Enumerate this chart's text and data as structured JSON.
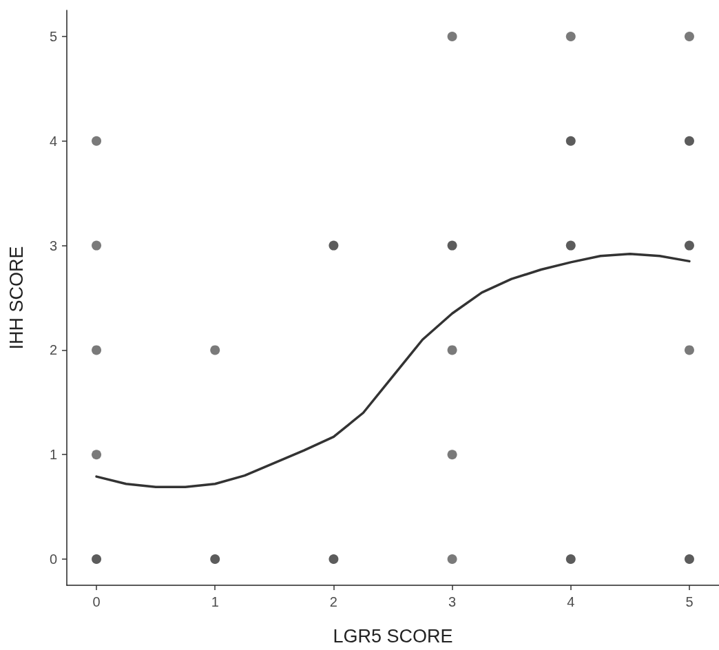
{
  "chart_data": {
    "type": "scatter",
    "xlabel": "LGR5 SCORE",
    "ylabel": "IHH SCORE",
    "xlim": [
      -0.25,
      5.25
    ],
    "xticks": [
      0,
      1,
      2,
      3,
      4,
      5
    ],
    "ylim": [
      -0.25,
      5.25
    ],
    "yticks": [
      0,
      1,
      2,
      3,
      4,
      5
    ],
    "grid": false,
    "series": [
      {
        "marker": "circle",
        "x": [
          0,
          0,
          0,
          0,
          0,
          1,
          1,
          2,
          2,
          3,
          3,
          3,
          3,
          3,
          4,
          4,
          4,
          4,
          5,
          5,
          5,
          5,
          5
        ],
        "values": [
          4,
          3,
          2,
          1,
          0,
          2,
          0,
          3,
          0,
          5,
          3,
          2,
          1,
          0,
          5,
          4,
          3,
          0,
          5,
          4,
          3,
          2,
          0
        ],
        "colors": [
          "#595959",
          "#595959",
          "#595959",
          "#595959",
          "#333333",
          "#595959",
          "#333333",
          "#333333",
          "#333333",
          "#595959",
          "#333333",
          "#595959",
          "#595959",
          "#595959",
          "#595959",
          "#333333",
          "#333333",
          "#333333",
          "#595959",
          "#333333",
          "#333333",
          "#595959",
          "#333333"
        ]
      },
      {
        "type": "line",
        "marker": "none",
        "color": "#333333",
        "line_style": "solid",
        "x": [
          0,
          0.25,
          0.5,
          0.75,
          1,
          1.25,
          1.5,
          1.75,
          2,
          2.25,
          2.5,
          2.75,
          3,
          3.25,
          3.5,
          3.75,
          4,
          4.25,
          4.5,
          4.75,
          5
        ],
        "values": [
          0.79,
          0.72,
          0.69,
          0.69,
          0.72,
          0.8,
          0.92,
          1.04,
          1.17,
          1.4,
          1.75,
          2.1,
          2.35,
          2.55,
          2.68,
          2.77,
          2.84,
          2.9,
          2.92,
          2.9,
          2.85
        ]
      }
    ]
  }
}
